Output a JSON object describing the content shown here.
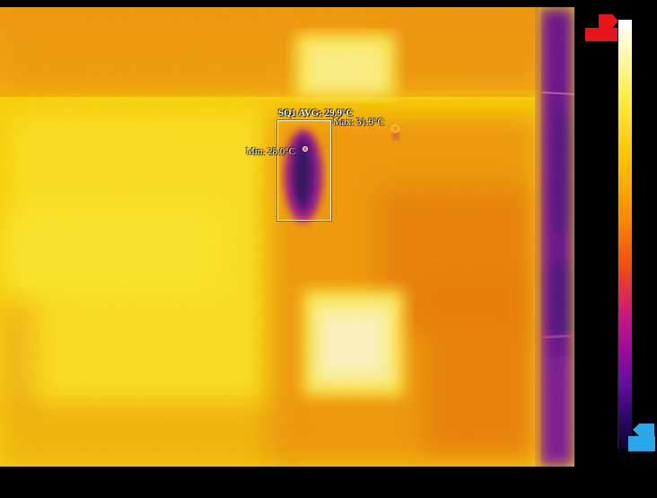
{
  "measurement": {
    "roi_label": "SQ1 AVG: 29.9°C",
    "max_label": "Max: 31.9°C",
    "min_label": "Min: 28.0°C"
  },
  "scale": {
    "top_label": "",
    "bottom_label": ""
  },
  "colors": {
    "palette": "ironbow",
    "scale_max_marker": "#e8151c",
    "scale_min_marker": "#2aa6ea",
    "hot_spot": "#fff4a8",
    "cold_spot": "#2a0a6a"
  }
}
